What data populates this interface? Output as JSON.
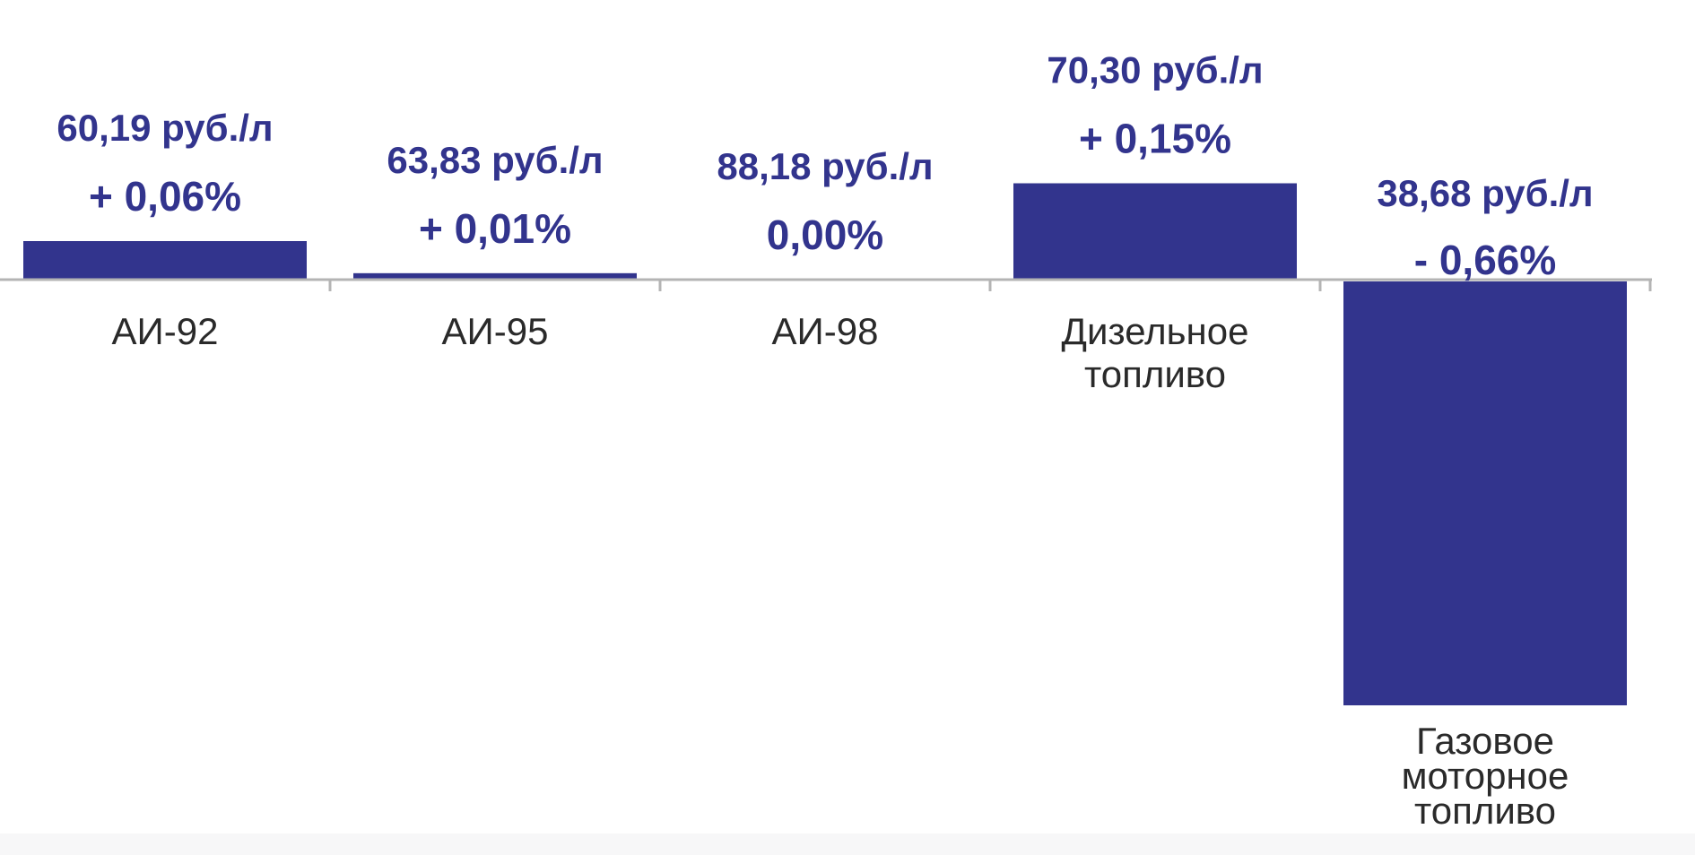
{
  "colors": {
    "bar": "#32348d",
    "label": "#32348d",
    "axis": "#b4b4b4",
    "category_text": "#2a2a2a"
  },
  "chart_data": {
    "type": "bar",
    "title": "",
    "xlabel": "",
    "ylabel": "",
    "categories": [
      [
        "АИ-92"
      ],
      [
        "АИ-95"
      ],
      [
        "АИ-98"
      ],
      [
        "Дизельное",
        "топливо"
      ],
      [
        "Газовое",
        "моторное",
        "топливо"
      ]
    ],
    "values": [
      0.06,
      0.01,
      0.0,
      0.15,
      -0.66
    ],
    "price_labels": [
      "60,19 руб./л",
      "63,83 руб./л",
      "88,18 руб./л",
      "70,30 руб./л",
      "38,68 руб./л"
    ],
    "change_labels": [
      "+ 0,06%",
      "+ 0,01%",
      "0,00%",
      "+ 0,15%",
      "- 0,66%"
    ],
    "value_unit": "%",
    "ylim": [
      -0.66,
      0.15
    ],
    "grid": false,
    "legend": "none"
  }
}
